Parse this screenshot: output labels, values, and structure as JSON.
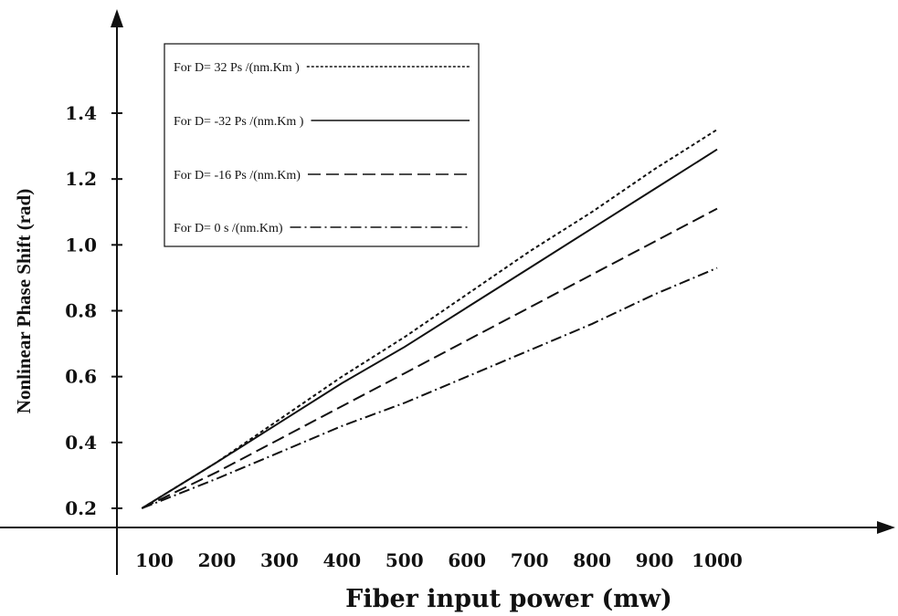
{
  "chart_data": {
    "type": "line",
    "title": "",
    "xlabel": "Fiber input power (mw)",
    "ylabel": "Nonlinear Phase Shift (rad)",
    "xlim": [
      100,
      1000
    ],
    "ylim": [
      0.2,
      1.4
    ],
    "x_ticks": [
      "100",
      "200",
      "300",
      "400",
      "500",
      "600",
      "700",
      "800",
      "900",
      "1000"
    ],
    "y_ticks": [
      "0.2",
      "0.4",
      "0.6",
      "0.8",
      "1.0",
      "1.2",
      "1.4"
    ],
    "grid": false,
    "legend_position": "top-left",
    "line_color": "#111111",
    "series": [
      {
        "name": "For D= 32 Ps /(nm.Km )",
        "style": "dotted",
        "x": [
          80,
          200,
          300,
          400,
          500,
          600,
          700,
          800,
          900,
          1000
        ],
        "y": [
          0.2,
          0.34,
          0.47,
          0.6,
          0.72,
          0.85,
          0.98,
          1.1,
          1.23,
          1.35
        ]
      },
      {
        "name": "For D= -32 Ps /(nm.Km )",
        "style": "solid",
        "x": [
          80,
          200,
          300,
          400,
          500,
          600,
          700,
          800,
          900,
          1000
        ],
        "y": [
          0.2,
          0.34,
          0.46,
          0.58,
          0.69,
          0.81,
          0.93,
          1.05,
          1.17,
          1.29
        ]
      },
      {
        "name": "For D= -16 Ps /(nm.Km)",
        "style": "dashed",
        "x": [
          80,
          200,
          300,
          400,
          500,
          600,
          700,
          800,
          900,
          1000
        ],
        "y": [
          0.2,
          0.31,
          0.41,
          0.51,
          0.61,
          0.71,
          0.81,
          0.91,
          1.01,
          1.11
        ]
      },
      {
        "name": "For D= 0 s /(nm.Km)",
        "style": "dash-dot",
        "x": [
          80,
          200,
          300,
          400,
          500,
          600,
          700,
          800,
          900,
          1000
        ],
        "y": [
          0.2,
          0.29,
          0.37,
          0.45,
          0.52,
          0.6,
          0.68,
          0.76,
          0.85,
          0.93
        ]
      }
    ]
  }
}
